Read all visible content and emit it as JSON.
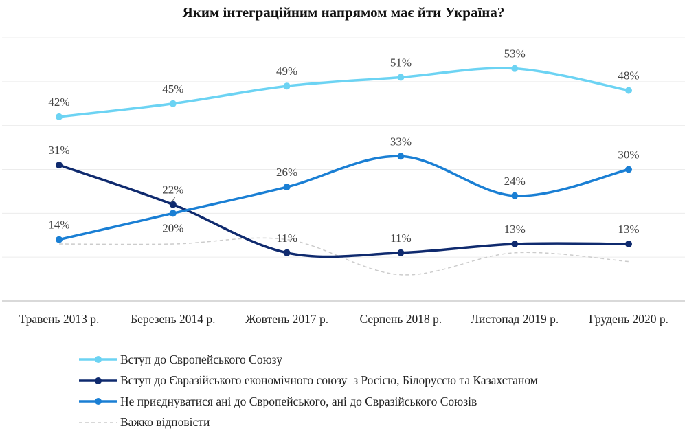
{
  "chart_data": {
    "type": "line",
    "title": "Яким інтеграційним напрямом має йти Україна?",
    "xlabel": "",
    "ylabel": "",
    "categories": [
      "Травень 2013 р.",
      "Березень 2014 р.",
      "Жовтень 2017 р.",
      "Серпень 2018 р.",
      "Листопад 2019 р.",
      "Грудень 2020 р."
    ],
    "ylim": [
      0,
      60
    ],
    "grid": true,
    "legend_position": "bottom",
    "series": [
      {
        "name": "Вступ до Європейського Союзу",
        "values": [
          42,
          45,
          49,
          51,
          53,
          48
        ],
        "labels": [
          "42%",
          "45%",
          "49%",
          "51%",
          "53%",
          "48%"
        ],
        "color": "#6cd3f3",
        "style": "solid-markers"
      },
      {
        "name": "Вступ до Євразійського економічного союзу  з Росією, Білоруссю та Казахстаном",
        "values": [
          31,
          22,
          11,
          11,
          13,
          13
        ],
        "labels": [
          "31%",
          "22%",
          "11%",
          "11%",
          "13%",
          "13%"
        ],
        "color": "#0f2a6e",
        "style": "solid-markers"
      },
      {
        "name": "Не приєднуватися ані до Європейського, ані до Євразійського Союзів",
        "values": [
          14,
          20,
          26,
          33,
          24,
          30
        ],
        "labels": [
          "14%",
          "20%",
          "26%",
          "33%",
          "24%",
          "30%"
        ],
        "color": "#1a7fd4",
        "style": "solid-markers"
      },
      {
        "name": "Важко відповісти",
        "values": [
          13,
          13,
          14,
          6,
          11,
          9
        ],
        "color": "#cccccc",
        "style": "dashed"
      }
    ]
  }
}
